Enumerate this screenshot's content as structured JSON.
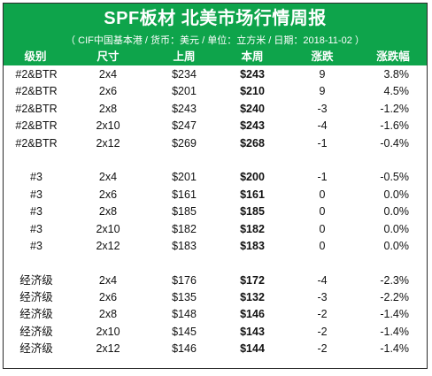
{
  "title": "SPF板材 北美市场行情周报",
  "subtitle": "（ CIF中国基本港 / 货币：美元 / 单位：立方米 / 日期：2018-11-02 ）",
  "headers": [
    "级别",
    "尺寸",
    "上周",
    "本周",
    "涨跌",
    "涨跌幅"
  ],
  "groups": [
    {
      "rows": [
        {
          "grade": "#2&BTR",
          "size": "2x4",
          "last": "$234",
          "this": "$243",
          "change": "9",
          "pct": "3.8%"
        },
        {
          "grade": "#2&BTR",
          "size": "2x6",
          "last": "$201",
          "this": "$210",
          "change": "9",
          "pct": "4.5%"
        },
        {
          "grade": "#2&BTR",
          "size": "2x8",
          "last": "$243",
          "this": "$240",
          "change": "-3",
          "pct": "-1.2%"
        },
        {
          "grade": "#2&BTR",
          "size": "2x10",
          "last": "$247",
          "this": "$243",
          "change": "-4",
          "pct": "-1.6%"
        },
        {
          "grade": "#2&BTR",
          "size": "2x12",
          "last": "$269",
          "this": "$268",
          "change": "-1",
          "pct": "-0.4%"
        }
      ]
    },
    {
      "rows": [
        {
          "grade": "#3",
          "size": "2x4",
          "last": "$201",
          "this": "$200",
          "change": "-1",
          "pct": "-0.5%"
        },
        {
          "grade": "#3",
          "size": "2x6",
          "last": "$161",
          "this": "$161",
          "change": "0",
          "pct": "0.0%"
        },
        {
          "grade": "#3",
          "size": "2x8",
          "last": "$185",
          "this": "$185",
          "change": "0",
          "pct": "0.0%"
        },
        {
          "grade": "#3",
          "size": "2x10",
          "last": "$182",
          "this": "$182",
          "change": "0",
          "pct": "0.0%"
        },
        {
          "grade": "#3",
          "size": "2x12",
          "last": "$183",
          "this": "$183",
          "change": "0",
          "pct": "0.0%"
        }
      ]
    },
    {
      "rows": [
        {
          "grade": "经济级",
          "size": "2x4",
          "last": "$176",
          "this": "$172",
          "change": "-4",
          "pct": "-2.3%"
        },
        {
          "grade": "经济级",
          "size": "2x6",
          "last": "$135",
          "this": "$132",
          "change": "-3",
          "pct": "-2.2%"
        },
        {
          "grade": "经济级",
          "size": "2x8",
          "last": "$148",
          "this": "$146",
          "change": "-2",
          "pct": "-1.4%"
        },
        {
          "grade": "经济级",
          "size": "2x10",
          "last": "$145",
          "this": "$143",
          "change": "-2",
          "pct": "-1.4%"
        },
        {
          "grade": "经济级",
          "size": "2x12",
          "last": "$146",
          "this": "$144",
          "change": "-2",
          "pct": "-1.4%"
        }
      ]
    }
  ],
  "colors": {
    "banner": "#0ea44b",
    "text": "#111111"
  }
}
